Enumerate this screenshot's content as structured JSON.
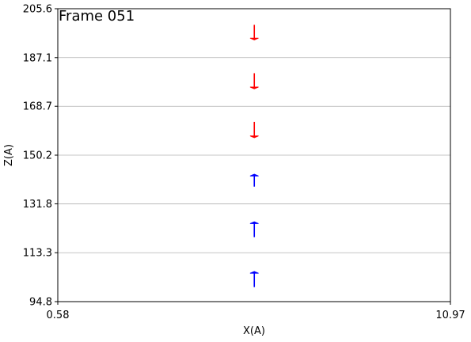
{
  "chart_data": {
    "type": "quiver",
    "annotation": "Frame 051",
    "xlabel": "X(A)",
    "ylabel": "Z(A)",
    "xlim": [
      0.58,
      10.97
    ],
    "ylim": [
      94.8,
      205.6
    ],
    "xticks": [
      "0.58",
      "10.97"
    ],
    "yticks": [
      "94.8",
      "113.3",
      "131.8",
      "150.2",
      "168.7",
      "187.1",
      "205.6"
    ],
    "grid": "horizontal",
    "series": [
      {
        "color": "#ff0000",
        "direction": "down",
        "arrows": [
          {
            "x": 5.78,
            "z_tail": 199.5,
            "z_head": 193.8
          },
          {
            "x": 5.78,
            "z_tail": 181.2,
            "z_head": 175.3
          },
          {
            "x": 5.78,
            "z_tail": 162.8,
            "z_head": 156.8
          }
        ]
      },
      {
        "color": "#0000ff",
        "direction": "up",
        "arrows": [
          {
            "x": 5.78,
            "z_tail": 138.3,
            "z_head": 143.0
          },
          {
            "x": 5.78,
            "z_tail": 119.2,
            "z_head": 125.0
          },
          {
            "x": 5.78,
            "z_tail": 100.3,
            "z_head": 106.2
          }
        ]
      }
    ]
  }
}
